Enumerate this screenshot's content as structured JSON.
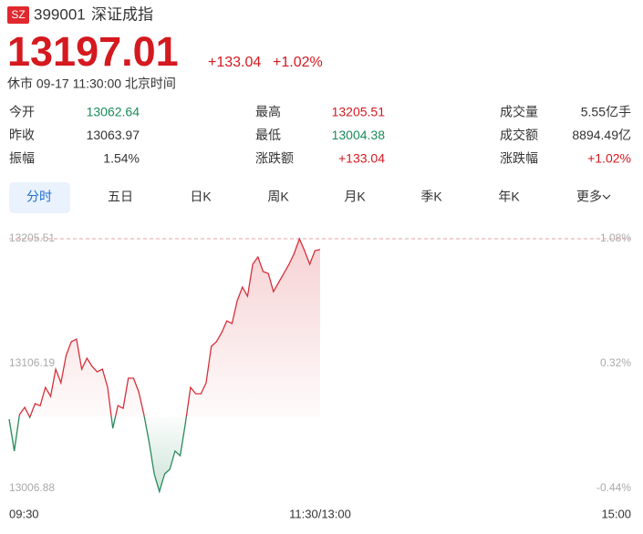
{
  "header": {
    "badge": "SZ",
    "code": "399001",
    "name": "深证成指",
    "price": "13197.01",
    "change": "+133.04",
    "change_pct": "+1.02%",
    "status": "休市 09-17 11:30:00 北京时间"
  },
  "stats": [
    [
      {
        "label": "今开",
        "value": "13062.64",
        "color": "#1a8c5a"
      },
      {
        "label": "最高",
        "value": "13205.51",
        "color": "#d4191f"
      },
      {
        "label": "成交量",
        "value": "5.55亿手",
        "color": "#333333"
      }
    ],
    [
      {
        "label": "昨收",
        "value": "13063.97",
        "color": "#333333"
      },
      {
        "label": "最低",
        "value": "13004.38",
        "color": "#1a8c5a"
      },
      {
        "label": "成交额",
        "value": "8894.49亿",
        "color": "#333333"
      }
    ],
    [
      {
        "label": "振幅",
        "value": "1.54%",
        "color": "#333333"
      },
      {
        "label": "涨跌额",
        "value": "+133.04",
        "color": "#d4191f"
      },
      {
        "label": "涨跌幅",
        "value": "+1.02%",
        "color": "#d4191f"
      }
    ]
  ],
  "tabs": [
    "分时",
    "五日",
    "日K",
    "周K",
    "月K",
    "季K",
    "年K",
    "更多"
  ],
  "chart_data": {
    "type": "line",
    "x": [
      "09:30",
      "09:32",
      "09:34",
      "09:36",
      "09:38",
      "09:40",
      "09:42",
      "09:44",
      "09:46",
      "09:48",
      "09:50",
      "09:52",
      "09:54",
      "09:56",
      "09:58",
      "10:00",
      "10:02",
      "10:04",
      "10:06",
      "10:08",
      "10:10",
      "10:12",
      "10:14",
      "10:16",
      "10:18",
      "10:20",
      "10:22",
      "10:24",
      "10:26",
      "10:28",
      "10:30",
      "10:32",
      "10:34",
      "10:36",
      "10:38",
      "10:40",
      "10:42",
      "10:44",
      "10:46",
      "10:48",
      "10:50",
      "10:52",
      "10:54",
      "10:56",
      "10:58",
      "11:00",
      "11:02",
      "11:04",
      "11:06",
      "11:08",
      "11:10",
      "11:12",
      "11:14",
      "11:16",
      "11:18",
      "11:20",
      "11:22",
      "11:24",
      "11:26",
      "11:28",
      "11:30"
    ],
    "values": [
      13061.96,
      13036.6,
      13065.6,
      13071.4,
      13063.4,
      13074.3,
      13072.8,
      13087.3,
      13080.1,
      13101.8,
      13090.9,
      13112.7,
      13123.6,
      13125.7,
      13101.8,
      13110.5,
      13104.0,
      13099.6,
      13101.8,
      13087.3,
      13054.7,
      13072.8,
      13070.6,
      13094.6,
      13094.6,
      13083.7,
      13065.6,
      13043.8,
      13018.4,
      13004.4,
      13018.4,
      13022.1,
      13036.6,
      13032.9,
      13058.3,
      13087.3,
      13082.2,
      13082.2,
      13090.9,
      13119.9,
      13123.6,
      13130.8,
      13140.2,
      13138.1,
      13156.2,
      13167.1,
      13159.8,
      13185.2,
      13191.0,
      13179.4,
      13177.9,
      13163.4,
      13170.7,
      13177.9,
      13185.2,
      13193.9,
      13205.5,
      13196.1,
      13185.2,
      13196.1,
      13197.0
    ],
    "up_color": "#d6303a",
    "down_color": "#2a8a5c",
    "ylim": [
      13006.88,
      13205.51
    ],
    "yticks": [
      13205.51,
      13106.19,
      13006.88
    ],
    "y2lim": [
      -0.44,
      1.08
    ],
    "y2ticks": [
      {
        "value": 1.08,
        "label": "1.08%"
      },
      {
        "value": 0.32,
        "label": "0.32%"
      },
      {
        "value": -0.44,
        "label": "-0.44%"
      }
    ],
    "xticks": [
      "09:30",
      "11:30/13:00",
      "15:00"
    ]
  }
}
